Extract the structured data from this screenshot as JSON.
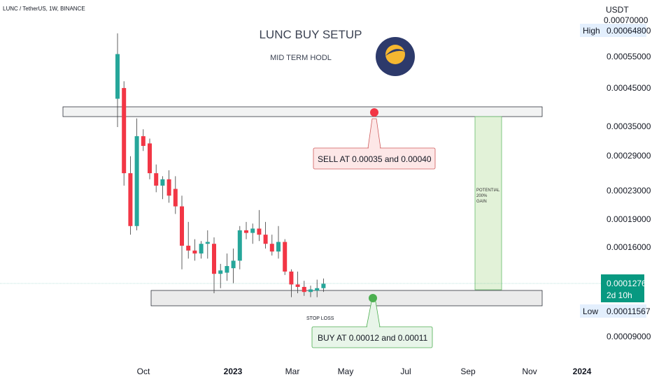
{
  "header": {
    "symbol_line": "LUNC / TetherUS, 1W, BINANCE",
    "currency": "USDT"
  },
  "annotations": {
    "title": "LUNC BUY SETUP",
    "subtitle": "MID TERM HODL",
    "sell_label": "SELL AT   0.00035 and 0.00040",
    "buy_label": "BUY AT   0.00012 and 0.00011",
    "stop_loss": "STOP LOSS",
    "potential_gain": [
      "POTENTIAL",
      "200%",
      "GAIN"
    ]
  },
  "price_axis": {
    "high_label": "High",
    "high_value": "0.00064800",
    "current_value": "0.00012760",
    "countdown": "2d 10h",
    "low_label": "Low",
    "low_value": "0.00011567"
  },
  "colors": {
    "bull": "#26a69a",
    "bear": "#f23645",
    "logo_bg": "#2d3a6b",
    "logo_moon": "#f5b731",
    "sell_dot": "#f23645",
    "buy_dot": "#4caf50",
    "current_price": "#089981",
    "high_low_bg": "#e3effd",
    "zone_fill": "#dcedc8",
    "zone_stroke": "#81c784"
  },
  "chart_data": {
    "type": "candlestick",
    "title": "LUNC / TetherUS, 1W, BINANCE",
    "y_scale": "log",
    "ylabel": "USDT",
    "y_ticks": [
      0.0007,
      0.000648,
      0.00055,
      0.00045,
      0.00035,
      0.00029,
      0.00023,
      0.00019,
      0.00016,
      0.0001276,
      0.00011567,
      9e-05
    ],
    "y_tick_labels": [
      "0.00070000",
      "0.00064800",
      "0.00055000",
      "0.00045000",
      "0.00035000",
      "0.00029000",
      "0.00023000",
      "0.00019000",
      "0.00016000",
      "0.00012760",
      "0.00011567",
      "0.00009000"
    ],
    "x_tick_labels": [
      "Oct",
      "2023",
      "Mar",
      "May",
      "Jul",
      "Sep",
      "Nov",
      "2024"
    ],
    "candles": [
      {
        "o": 0.00042,
        "h": 0.00064,
        "l": 0.00035,
        "c": 0.00056
      },
      {
        "o": 0.00045,
        "h": 0.00047,
        "l": 0.00024,
        "c": 0.00026
      },
      {
        "o": 0.00026,
        "h": 0.00029,
        "l": 0.000175,
        "c": 0.000185
      },
      {
        "o": 0.000185,
        "h": 0.00037,
        "l": 0.00018,
        "c": 0.00033
      },
      {
        "o": 0.00033,
        "h": 0.000345,
        "l": 0.0003,
        "c": 0.00031
      },
      {
        "o": 0.000315,
        "h": 0.000325,
        "l": 0.00025,
        "c": 0.00026
      },
      {
        "o": 0.00026,
        "h": 0.000275,
        "l": 0.00023,
        "c": 0.00024
      },
      {
        "o": 0.00024,
        "h": 0.000255,
        "l": 0.00022,
        "c": 0.00025
      },
      {
        "o": 0.00025,
        "h": 0.000265,
        "l": 0.000215,
        "c": 0.000225
      },
      {
        "o": 0.000235,
        "h": 0.000255,
        "l": 0.0002,
        "c": 0.00021
      },
      {
        "o": 0.00021,
        "h": 0.000225,
        "l": 0.00014,
        "c": 0.000163
      },
      {
        "o": 0.000163,
        "h": 0.00019,
        "l": 0.00015,
        "c": 0.000158
      },
      {
        "o": 0.000158,
        "h": 0.00017,
        "l": 0.000148,
        "c": 0.000155
      },
      {
        "o": 0.000155,
        "h": 0.000168,
        "l": 0.00015,
        "c": 0.000165
      },
      {
        "o": 0.000165,
        "h": 0.00018,
        "l": 0.00015,
        "c": 0.000167
      },
      {
        "o": 0.000165,
        "h": 0.000172,
        "l": 0.00012,
        "c": 0.000136
      },
      {
        "o": 0.000136,
        "h": 0.000145,
        "l": 0.000124,
        "c": 0.000139
      },
      {
        "o": 0.000137,
        "h": 0.000155,
        "l": 0.00013,
        "c": 0.000143
      },
      {
        "o": 0.000141,
        "h": 0.00016,
        "l": 0.000128,
        "c": 0.000148
      },
      {
        "o": 0.000148,
        "h": 0.000185,
        "l": 0.00014,
        "c": 0.00018
      },
      {
        "o": 0.00018,
        "h": 0.00019,
        "l": 0.00017,
        "c": 0.000177
      },
      {
        "o": 0.000177,
        "h": 0.000188,
        "l": 0.000165,
        "c": 0.000182
      },
      {
        "o": 0.000182,
        "h": 0.000205,
        "l": 0.000168,
        "c": 0.000175
      },
      {
        "o": 0.000175,
        "h": 0.00019,
        "l": 0.00016,
        "c": 0.000165
      },
      {
        "o": 0.000165,
        "h": 0.000175,
        "l": 0.000153,
        "c": 0.000157
      },
      {
        "o": 0.000157,
        "h": 0.000185,
        "l": 0.00015,
        "c": 0.000167
      },
      {
        "o": 0.000167,
        "h": 0.00017,
        "l": 0.000135,
        "c": 0.000138
      },
      {
        "o": 0.000138,
        "h": 0.00014,
        "l": 0.000117,
        "c": 0.000127
      },
      {
        "o": 0.000127,
        "h": 0.000138,
        "l": 0.00012,
        "c": 0.000125
      },
      {
        "o": 0.000125,
        "h": 0.00013,
        "l": 0.000118,
        "c": 0.000121
      },
      {
        "o": 0.000121,
        "h": 0.000126,
        "l": 0.000117,
        "c": 0.000123
      },
      {
        "o": 0.000122,
        "h": 0.000131,
        "l": 0.000117,
        "c": 0.000124
      },
      {
        "o": 0.000124,
        "h": 0.000132,
        "l": 0.000121,
        "c": 0.0001276
      }
    ],
    "levels": {
      "sell_zone": [
        0.00035,
        0.0004
      ],
      "buy_zone": [
        0.00011,
        0.00012
      ]
    }
  }
}
